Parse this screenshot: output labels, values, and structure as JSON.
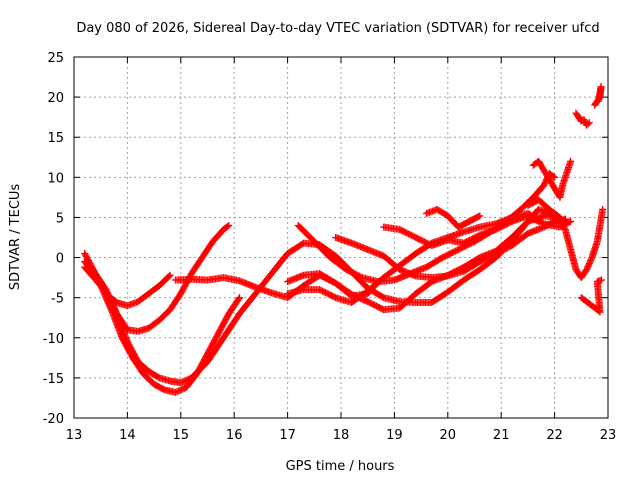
{
  "chart_data": {
    "type": "scatter",
    "title": "Day 080 of 2026, Sidereal Day-to-day VTEC variation (SDTVAR) for receiver ufcd",
    "xlabel": "GPS time / hours",
    "ylabel": "SDTVAR / TECUs",
    "xlim": [
      13,
      23
    ],
    "ylim": [
      -20,
      25
    ],
    "x_ticks": [
      "13",
      "14",
      "15",
      "16",
      "17",
      "18",
      "19",
      "20",
      "21",
      "22",
      "23"
    ],
    "y_ticks": [
      "-20",
      "-15",
      "-10",
      "-5",
      "0",
      "5",
      "10",
      "15",
      "20",
      "25"
    ],
    "grid": true,
    "marker": "+",
    "color": "#ff0000",
    "series": [
      {
        "name": "track-1",
        "points": [
          [
            13.2,
            0.5
          ],
          [
            13.4,
            -2
          ],
          [
            13.6,
            -4.5
          ],
          [
            13.8,
            -5.6
          ],
          [
            14.0,
            -6
          ],
          [
            14.2,
            -5.5
          ],
          [
            14.4,
            -4.5
          ],
          [
            14.6,
            -3.5
          ],
          [
            14.8,
            -2.2
          ]
        ]
      },
      {
        "name": "track-2",
        "points": [
          [
            13.2,
            -0.5
          ],
          [
            13.5,
            -3
          ],
          [
            13.8,
            -7
          ],
          [
            14.0,
            -10.5
          ],
          [
            14.2,
            -13
          ],
          [
            14.4,
            -14.2
          ],
          [
            14.6,
            -15
          ],
          [
            14.8,
            -15.4
          ],
          [
            15.0,
            -15.6
          ],
          [
            15.2,
            -15
          ],
          [
            15.5,
            -13
          ],
          [
            15.8,
            -10
          ],
          [
            16.1,
            -7
          ],
          [
            16.4,
            -4.5
          ],
          [
            16.7,
            -2
          ],
          [
            17.0,
            0.5
          ],
          [
            17.3,
            1.8
          ],
          [
            17.6,
            1.6
          ],
          [
            17.9,
            0.2
          ],
          [
            18.2,
            -1.8
          ],
          [
            18.5,
            -3.8
          ],
          [
            18.8,
            -5
          ],
          [
            19.1,
            -5.5
          ],
          [
            19.4,
            -5.6
          ],
          [
            19.7,
            -5.6
          ],
          [
            20.0,
            -4.3
          ],
          [
            20.3,
            -2.8
          ],
          [
            20.6,
            -1.5
          ],
          [
            20.9,
            0
          ],
          [
            21.2,
            2
          ],
          [
            21.5,
            4.5
          ],
          [
            21.7,
            6
          ],
          [
            21.9,
            5.5
          ],
          [
            22.1,
            4.5
          ],
          [
            22.2,
            4.8
          ]
        ]
      },
      {
        "name": "track-3",
        "points": [
          [
            13.3,
            -1
          ],
          [
            13.6,
            -4
          ],
          [
            13.8,
            -7
          ],
          [
            14.0,
            -9
          ],
          [
            14.2,
            -9.2
          ],
          [
            14.4,
            -8.8
          ],
          [
            14.6,
            -7.8
          ],
          [
            14.8,
            -6.5
          ],
          [
            15.0,
            -4.5
          ],
          [
            15.2,
            -2
          ],
          [
            15.4,
            0
          ],
          [
            15.6,
            2
          ],
          [
            15.8,
            3.5
          ],
          [
            15.9,
            4
          ]
        ]
      },
      {
        "name": "track-4",
        "points": [
          [
            13.2,
            -1.2
          ],
          [
            13.5,
            -3.5
          ],
          [
            13.7,
            -6.5
          ],
          [
            13.9,
            -10
          ],
          [
            14.1,
            -12.5
          ],
          [
            14.3,
            -14.5
          ],
          [
            14.5,
            -15.8
          ],
          [
            14.7,
            -16.5
          ],
          [
            14.9,
            -16.8
          ],
          [
            15.1,
            -16.2
          ],
          [
            15.3,
            -14.5
          ],
          [
            15.5,
            -12
          ],
          [
            15.7,
            -9.5
          ],
          [
            15.9,
            -7
          ],
          [
            16.1,
            -5
          ]
        ]
      },
      {
        "name": "track-5",
        "points": [
          [
            14.9,
            -2.8
          ],
          [
            15.2,
            -2.7
          ],
          [
            15.5,
            -2.8
          ],
          [
            15.8,
            -2.5
          ],
          [
            16.1,
            -2.9
          ],
          [
            16.4,
            -3.7
          ],
          [
            16.7,
            -4.4
          ],
          [
            17.0,
            -5
          ],
          [
            17.3,
            -3.5
          ],
          [
            17.6,
            -2.2
          ],
          [
            17.9,
            -3.2
          ],
          [
            18.2,
            -4.6
          ],
          [
            18.5,
            -5.5
          ],
          [
            18.8,
            -6.5
          ],
          [
            19.1,
            -6.3
          ],
          [
            19.4,
            -4.5
          ],
          [
            19.7,
            -3
          ],
          [
            20.0,
            -2.2
          ],
          [
            20.3,
            -1.2
          ],
          [
            20.6,
            0
          ],
          [
            20.9,
            0.8
          ],
          [
            21.2,
            2.5
          ],
          [
            21.5,
            4.5
          ],
          [
            21.8,
            5.2
          ],
          [
            22.1,
            5
          ]
        ]
      },
      {
        "name": "track-6",
        "points": [
          [
            17.0,
            -3
          ],
          [
            17.3,
            -2.2
          ],
          [
            17.6,
            -2
          ],
          [
            17.9,
            -3.2
          ],
          [
            18.2,
            -4.8
          ],
          [
            18.5,
            -4.5
          ],
          [
            18.7,
            -3
          ]
        ]
      },
      {
        "name": "track-7",
        "points": [
          [
            17.0,
            -4.5
          ],
          [
            17.3,
            -4
          ],
          [
            17.6,
            -4
          ],
          [
            17.9,
            -5
          ],
          [
            18.2,
            -5.6
          ],
          [
            18.5,
            -4.2
          ],
          [
            18.8,
            -2.5
          ],
          [
            19.1,
            -1
          ],
          [
            19.4,
            0.5
          ],
          [
            19.7,
            1.8
          ],
          [
            20.0,
            2.5
          ],
          [
            20.3,
            3.2
          ],
          [
            20.6,
            3.8
          ],
          [
            20.9,
            4.2
          ],
          [
            21.2,
            5
          ],
          [
            21.5,
            5.5
          ],
          [
            21.8,
            4.2
          ],
          [
            22.1,
            3.8
          ],
          [
            22.3,
            4.5
          ]
        ]
      },
      {
        "name": "track-8",
        "points": [
          [
            17.2,
            4
          ],
          [
            17.5,
            2
          ],
          [
            17.8,
            0
          ],
          [
            18.1,
            -1.5
          ],
          [
            18.4,
            -2.5
          ],
          [
            18.7,
            -3
          ],
          [
            19.0,
            -2.8
          ],
          [
            19.3,
            -2
          ],
          [
            19.6,
            -1.2
          ],
          [
            19.9,
            0
          ],
          [
            20.2,
            1
          ],
          [
            20.5,
            2
          ],
          [
            20.8,
            3.2
          ],
          [
            21.1,
            4.5
          ],
          [
            21.4,
            6.2
          ],
          [
            21.6,
            7.5
          ],
          [
            21.8,
            9
          ],
          [
            21.9,
            10.5
          ],
          [
            22.0,
            10
          ]
        ]
      },
      {
        "name": "track-9",
        "points": [
          [
            17.9,
            2.5
          ],
          [
            18.2,
            1.8
          ],
          [
            18.5,
            1
          ],
          [
            18.8,
            0.2
          ],
          [
            19.1,
            -1.5
          ],
          [
            19.4,
            -2.3
          ],
          [
            19.7,
            -2.5
          ],
          [
            20.0,
            -2.3
          ],
          [
            20.3,
            -1.7
          ],
          [
            20.6,
            -0.5
          ],
          [
            20.9,
            0.5
          ],
          [
            21.2,
            1.5
          ],
          [
            21.5,
            3
          ],
          [
            21.8,
            3.8
          ],
          [
            22.0,
            4.5
          ],
          [
            22.1,
            4.8
          ]
        ]
      },
      {
        "name": "track-10",
        "points": [
          [
            18.8,
            3.8
          ],
          [
            19.1,
            3.5
          ],
          [
            19.4,
            2.5
          ],
          [
            19.7,
            1.5
          ],
          [
            20.0,
            2.2
          ],
          [
            20.3,
            1.8
          ],
          [
            20.6,
            2.8
          ],
          [
            20.9,
            3.5
          ],
          [
            21.2,
            4.5
          ],
          [
            21.5,
            5.2
          ],
          [
            21.7,
            4.5
          ]
        ]
      },
      {
        "name": "track-11",
        "points": [
          [
            19.6,
            5.5
          ],
          [
            19.8,
            6
          ],
          [
            20.0,
            5.2
          ],
          [
            20.2,
            3.8
          ],
          [
            20.4,
            4.5
          ],
          [
            20.6,
            5.2
          ]
        ]
      },
      {
        "name": "track-12",
        "points": [
          [
            21.5,
            6.5
          ],
          [
            21.7,
            7.2
          ],
          [
            21.9,
            6
          ],
          [
            22.0,
            5.5
          ],
          [
            22.1,
            5
          ],
          [
            22.2,
            3.5
          ],
          [
            22.3,
            1
          ],
          [
            22.4,
            -1.5
          ],
          [
            22.5,
            -2.5
          ],
          [
            22.6,
            -1.5
          ],
          [
            22.7,
            0
          ],
          [
            22.8,
            2
          ],
          [
            22.85,
            4
          ],
          [
            22.9,
            6
          ]
        ]
      },
      {
        "name": "track-13",
        "points": [
          [
            21.6,
            11.5
          ],
          [
            21.7,
            12
          ],
          [
            22.1,
            7.5
          ],
          [
            22.15,
            9
          ],
          [
            22.2,
            10
          ],
          [
            22.25,
            11
          ],
          [
            22.3,
            12
          ]
        ]
      },
      {
        "name": "track-14",
        "points": [
          [
            22.4,
            18
          ],
          [
            22.45,
            17.5
          ],
          [
            22.5,
            17
          ],
          [
            22.55,
            17.2
          ],
          [
            22.6,
            16.5
          ],
          [
            22.65,
            16.8
          ]
        ]
      },
      {
        "name": "track-15",
        "points": [
          [
            22.75,
            19
          ],
          [
            22.8,
            19.5
          ],
          [
            22.85,
            20
          ],
          [
            22.87,
            21.3
          ],
          [
            22.82,
            19.5
          ]
        ]
      },
      {
        "name": "track-16",
        "points": [
          [
            22.5,
            -5
          ],
          [
            22.6,
            -5.5
          ],
          [
            22.7,
            -6
          ],
          [
            22.8,
            -6.5
          ],
          [
            22.85,
            -6.8
          ],
          [
            22.8,
            -3
          ],
          [
            22.88,
            -2.8
          ]
        ]
      }
    ]
  }
}
